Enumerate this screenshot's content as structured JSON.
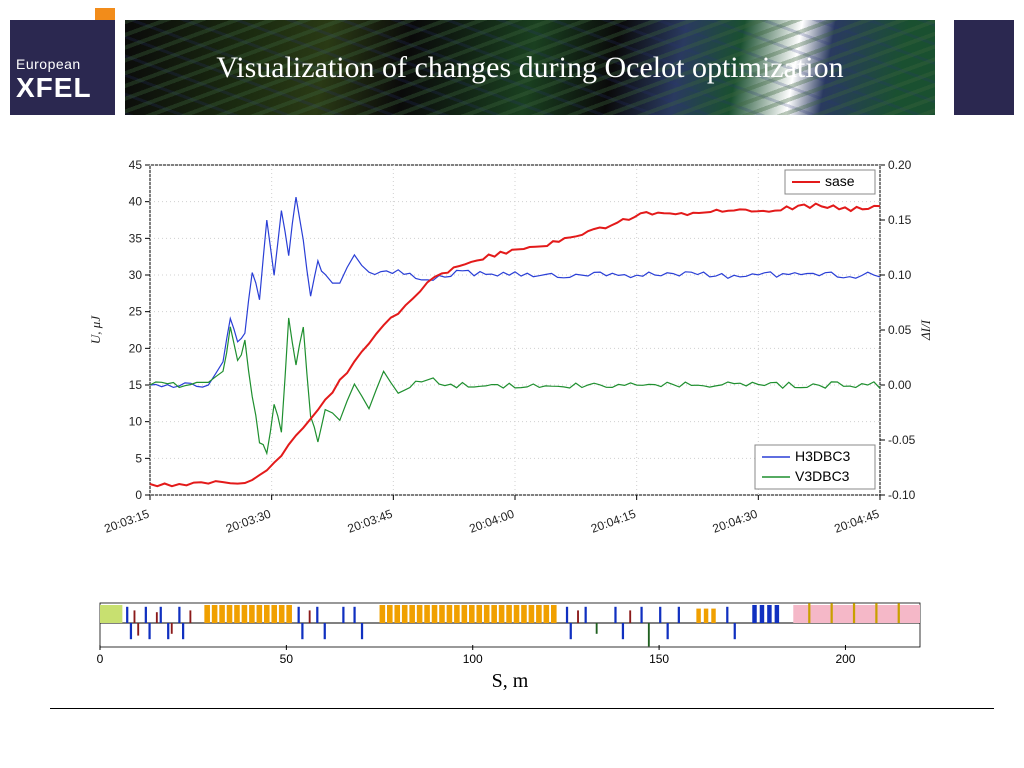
{
  "header": {
    "logo_line1": "European",
    "logo_line2": "XFEL",
    "title": "Visualization of changes during Ocelot optimization"
  },
  "chart": {
    "type": "line-dual-axis",
    "background_color": "#ffffff",
    "grid_color": "#d0d0d0",
    "left_axis": {
      "label": "U, μJ",
      "min": 0,
      "max": 45,
      "step": 5,
      "label_fontsize": 13
    },
    "right_axis": {
      "label": "ΔI/I",
      "min": -0.1,
      "max": 0.2,
      "step": 0.05,
      "label_fontsize": 13
    },
    "x_axis": {
      "ticks": [
        "20:03:15",
        "20:03:30",
        "20:03:45",
        "20:04:00",
        "20:04:15",
        "20:04:30",
        "20:04:45"
      ],
      "rotation_deg": -20
    },
    "legend_top": {
      "items": [
        {
          "label": "sase",
          "color": "#e31a1a"
        }
      ]
    },
    "legend_bottom": {
      "items": [
        {
          "label": "H3DBC3",
          "color": "#2a3fd6"
        },
        {
          "label": "V3DBC3",
          "color": "#1f8f2f"
        }
      ]
    },
    "series": {
      "sase": {
        "axis": "left",
        "color": "#e31a1a",
        "line_width": 2.0,
        "t": [
          0,
          2,
          4,
          6,
          8,
          10,
          12,
          14,
          16,
          18,
          20,
          22,
          24,
          26,
          28,
          30,
          32,
          34,
          36,
          38,
          40,
          44,
          48,
          52,
          56,
          60,
          64,
          68,
          72,
          76,
          80,
          84,
          88,
          92,
          96,
          100
        ],
        "y": [
          1.5,
          1.4,
          1.6,
          1.5,
          1.8,
          1.6,
          1.7,
          2.0,
          3.5,
          5.5,
          8.0,
          10.5,
          13.0,
          15.5,
          18.0,
          20.5,
          23.0,
          25.0,
          27.0,
          28.8,
          30.2,
          32.0,
          33.0,
          33.8,
          34.5,
          35.8,
          37.2,
          38.5,
          38.0,
          38.8,
          39.0,
          38.6,
          39.2,
          39.5,
          39.0,
          39.4
        ]
      },
      "H3DBC3": {
        "axis": "right",
        "color": "#2a3fd6",
        "line_width": 1.2,
        "t": [
          0,
          4,
          8,
          10,
          11,
          12,
          13,
          14,
          15,
          16,
          17,
          18,
          19,
          20,
          21,
          22,
          23,
          24,
          26,
          28,
          30,
          34,
          38,
          42,
          50,
          60,
          70,
          80,
          90,
          100
        ],
        "y": [
          0.0,
          0.0,
          0.0,
          0.02,
          0.06,
          0.04,
          0.05,
          0.1,
          0.08,
          0.15,
          0.1,
          0.16,
          0.12,
          0.17,
          0.13,
          0.08,
          0.11,
          0.1,
          0.09,
          0.12,
          0.1,
          0.105,
          0.095,
          0.102,
          0.1,
          0.1,
          0.1,
          0.1,
          0.1,
          0.1
        ]
      },
      "V3DBC3": {
        "axis": "right",
        "color": "#1f8f2f",
        "line_width": 1.2,
        "t": [
          0,
          4,
          8,
          10,
          11,
          12,
          13,
          14,
          15,
          16,
          17,
          18,
          19,
          20,
          21,
          22,
          23,
          24,
          26,
          28,
          30,
          32,
          34,
          38,
          42,
          50,
          60,
          70,
          80,
          90,
          100
        ],
        "y": [
          0.0,
          0.0,
          0.0,
          0.01,
          0.05,
          0.02,
          0.04,
          -0.01,
          -0.05,
          -0.06,
          -0.02,
          -0.04,
          0.06,
          0.02,
          0.05,
          -0.03,
          -0.05,
          -0.02,
          -0.03,
          0.0,
          -0.02,
          0.01,
          -0.005,
          0.005,
          0.0,
          0.0,
          0.0,
          0.0,
          0.0,
          0.0,
          0.0
        ]
      }
    }
  },
  "lattice": {
    "type": "lattice-strip",
    "x_label": "S, m",
    "x_min": 0,
    "x_max": 220,
    "x_step": 50,
    "strip_height": 36,
    "baseline_color": "#000000",
    "region_colors": {
      "start": "#c8e070",
      "end": "#f5b8c8"
    },
    "elements": [
      {
        "s": 0,
        "w": 6,
        "h": 1.0,
        "c": "#c8e070"
      },
      {
        "s": 7,
        "w": 0.6,
        "h": 0.9,
        "c": "#1030c0"
      },
      {
        "s": 8,
        "w": 0.6,
        "h": -0.9,
        "c": "#1030c0"
      },
      {
        "s": 9,
        "w": 0.5,
        "h": 0.7,
        "c": "#8b1a1a"
      },
      {
        "s": 10,
        "w": 0.5,
        "h": -0.7,
        "c": "#8b1a1a"
      },
      {
        "s": 12,
        "w": 0.6,
        "h": 0.9,
        "c": "#1030c0"
      },
      {
        "s": 13,
        "w": 0.6,
        "h": -0.9,
        "c": "#1030c0"
      },
      {
        "s": 15,
        "w": 0.5,
        "h": 0.6,
        "c": "#8b1a1a"
      },
      {
        "s": 16,
        "w": 0.6,
        "h": 0.9,
        "c": "#1030c0"
      },
      {
        "s": 18,
        "w": 0.6,
        "h": -0.9,
        "c": "#1030c0"
      },
      {
        "s": 19,
        "w": 0.5,
        "h": -0.6,
        "c": "#8b1a1a"
      },
      {
        "s": 21,
        "w": 0.6,
        "h": 0.9,
        "c": "#1030c0"
      },
      {
        "s": 22,
        "w": 0.6,
        "h": -0.9,
        "c": "#1030c0"
      },
      {
        "s": 24,
        "w": 0.5,
        "h": 0.7,
        "c": "#8b1a1a"
      },
      {
        "s": 28,
        "w": 1.5,
        "h": 1.0,
        "c": "#f0a000"
      },
      {
        "s": 30,
        "w": 1.5,
        "h": 1.0,
        "c": "#f0a000"
      },
      {
        "s": 32,
        "w": 1.5,
        "h": 1.0,
        "c": "#f0a000"
      },
      {
        "s": 34,
        "w": 1.5,
        "h": 1.0,
        "c": "#f0a000"
      },
      {
        "s": 36,
        "w": 1.5,
        "h": 1.0,
        "c": "#f0a000"
      },
      {
        "s": 38,
        "w": 1.5,
        "h": 1.0,
        "c": "#f0a000"
      },
      {
        "s": 40,
        "w": 1.5,
        "h": 1.0,
        "c": "#f0a000"
      },
      {
        "s": 42,
        "w": 1.5,
        "h": 1.0,
        "c": "#f0a000"
      },
      {
        "s": 44,
        "w": 1.5,
        "h": 1.0,
        "c": "#f0a000"
      },
      {
        "s": 46,
        "w": 1.5,
        "h": 1.0,
        "c": "#f0a000"
      },
      {
        "s": 48,
        "w": 1.5,
        "h": 1.0,
        "c": "#f0a000"
      },
      {
        "s": 50,
        "w": 1.5,
        "h": 1.0,
        "c": "#f0a000"
      },
      {
        "s": 53,
        "w": 0.6,
        "h": 0.9,
        "c": "#1030c0"
      },
      {
        "s": 54,
        "w": 0.6,
        "h": -0.9,
        "c": "#1030c0"
      },
      {
        "s": 56,
        "w": 0.5,
        "h": 0.7,
        "c": "#8b1a1a"
      },
      {
        "s": 58,
        "w": 0.6,
        "h": 0.9,
        "c": "#1030c0"
      },
      {
        "s": 60,
        "w": 0.6,
        "h": -0.9,
        "c": "#1030c0"
      },
      {
        "s": 65,
        "w": 0.6,
        "h": 0.9,
        "c": "#1030c0"
      },
      {
        "s": 68,
        "w": 0.6,
        "h": 0.9,
        "c": "#1030c0"
      },
      {
        "s": 70,
        "w": 0.6,
        "h": -0.9,
        "c": "#1030c0"
      },
      {
        "s": 75,
        "w": 1.5,
        "h": 1.0,
        "c": "#f0a000"
      },
      {
        "s": 77,
        "w": 1.5,
        "h": 1.0,
        "c": "#f0a000"
      },
      {
        "s": 79,
        "w": 1.5,
        "h": 1.0,
        "c": "#f0a000"
      },
      {
        "s": 81,
        "w": 1.5,
        "h": 1.0,
        "c": "#f0a000"
      },
      {
        "s": 83,
        "w": 1.5,
        "h": 1.0,
        "c": "#f0a000"
      },
      {
        "s": 85,
        "w": 1.5,
        "h": 1.0,
        "c": "#f0a000"
      },
      {
        "s": 87,
        "w": 1.5,
        "h": 1.0,
        "c": "#f0a000"
      },
      {
        "s": 89,
        "w": 1.5,
        "h": 1.0,
        "c": "#f0a000"
      },
      {
        "s": 91,
        "w": 1.5,
        "h": 1.0,
        "c": "#f0a000"
      },
      {
        "s": 93,
        "w": 1.5,
        "h": 1.0,
        "c": "#f0a000"
      },
      {
        "s": 95,
        "w": 1.5,
        "h": 1.0,
        "c": "#f0a000"
      },
      {
        "s": 97,
        "w": 1.5,
        "h": 1.0,
        "c": "#f0a000"
      },
      {
        "s": 99,
        "w": 1.5,
        "h": 1.0,
        "c": "#f0a000"
      },
      {
        "s": 101,
        "w": 1.5,
        "h": 1.0,
        "c": "#f0a000"
      },
      {
        "s": 103,
        "w": 1.5,
        "h": 1.0,
        "c": "#f0a000"
      },
      {
        "s": 105,
        "w": 1.5,
        "h": 1.0,
        "c": "#f0a000"
      },
      {
        "s": 107,
        "w": 1.5,
        "h": 1.0,
        "c": "#f0a000"
      },
      {
        "s": 109,
        "w": 1.5,
        "h": 1.0,
        "c": "#f0a000"
      },
      {
        "s": 111,
        "w": 1.5,
        "h": 1.0,
        "c": "#f0a000"
      },
      {
        "s": 113,
        "w": 1.5,
        "h": 1.0,
        "c": "#f0a000"
      },
      {
        "s": 115,
        "w": 1.5,
        "h": 1.0,
        "c": "#f0a000"
      },
      {
        "s": 117,
        "w": 1.5,
        "h": 1.0,
        "c": "#f0a000"
      },
      {
        "s": 119,
        "w": 1.5,
        "h": 1.0,
        "c": "#f0a000"
      },
      {
        "s": 121,
        "w": 1.5,
        "h": 1.0,
        "c": "#f0a000"
      },
      {
        "s": 125,
        "w": 0.6,
        "h": 0.9,
        "c": "#1030c0"
      },
      {
        "s": 126,
        "w": 0.6,
        "h": -0.9,
        "c": "#1030c0"
      },
      {
        "s": 128,
        "w": 0.5,
        "h": 0.7,
        "c": "#8b1a1a"
      },
      {
        "s": 130,
        "w": 0.6,
        "h": 0.9,
        "c": "#1030c0"
      },
      {
        "s": 133,
        "w": 0.5,
        "h": -0.6,
        "c": "#206020"
      },
      {
        "s": 138,
        "w": 0.6,
        "h": 0.9,
        "c": "#1030c0"
      },
      {
        "s": 140,
        "w": 0.6,
        "h": -0.9,
        "c": "#1030c0"
      },
      {
        "s": 142,
        "w": 0.5,
        "h": 0.7,
        "c": "#8b1a1a"
      },
      {
        "s": 145,
        "w": 0.6,
        "h": 0.9,
        "c": "#1030c0"
      },
      {
        "s": 147,
        "w": 0.5,
        "h": -1.3,
        "c": "#206020"
      },
      {
        "s": 150,
        "w": 0.6,
        "h": 0.9,
        "c": "#1030c0"
      },
      {
        "s": 152,
        "w": 0.6,
        "h": -0.9,
        "c": "#1030c0"
      },
      {
        "s": 155,
        "w": 0.6,
        "h": 0.9,
        "c": "#1030c0"
      },
      {
        "s": 160,
        "w": 1.2,
        "h": 0.8,
        "c": "#f0a000"
      },
      {
        "s": 162,
        "w": 1.2,
        "h": 0.8,
        "c": "#f0a000"
      },
      {
        "s": 164,
        "w": 1.2,
        "h": 0.8,
        "c": "#f0a000"
      },
      {
        "s": 168,
        "w": 0.6,
        "h": 0.9,
        "c": "#1030c0"
      },
      {
        "s": 170,
        "w": 0.6,
        "h": -0.9,
        "c": "#1030c0"
      },
      {
        "s": 175,
        "w": 1.2,
        "h": 1.0,
        "c": "#1030c0"
      },
      {
        "s": 177,
        "w": 1.2,
        "h": 1.0,
        "c": "#1030c0"
      },
      {
        "s": 179,
        "w": 1.2,
        "h": 1.0,
        "c": "#1030c0"
      },
      {
        "s": 181,
        "w": 1.2,
        "h": 1.0,
        "c": "#1030c0"
      },
      {
        "s": 186,
        "w": 34,
        "h": 1.0,
        "c": "#f5b8c8"
      },
      {
        "s": 190,
        "w": 0.6,
        "h": 1.1,
        "c": "#c8a000"
      },
      {
        "s": 196,
        "w": 0.6,
        "h": 1.1,
        "c": "#c8a000"
      },
      {
        "s": 202,
        "w": 0.6,
        "h": 1.1,
        "c": "#c8a000"
      },
      {
        "s": 208,
        "w": 0.6,
        "h": 1.1,
        "c": "#c8a000"
      },
      {
        "s": 214,
        "w": 0.6,
        "h": 1.1,
        "c": "#c8a000"
      }
    ]
  }
}
